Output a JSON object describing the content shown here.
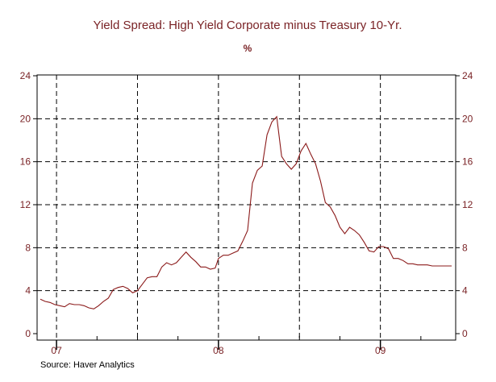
{
  "chart_data": {
    "type": "line",
    "title": "Yield Spread: High Yield Corporate minus Treasury 10-Yr.",
    "unit_label": "%",
    "source": "Source: Haver Analytics",
    "ylim": [
      0,
      24
    ],
    "y_ticks": [
      0,
      4,
      8,
      12,
      16,
      20,
      24
    ],
    "y_tick_labels_left": [
      "0",
      "4",
      "8",
      "12",
      "16",
      "20",
      "24"
    ],
    "y_tick_labels_right": [
      "0",
      "4",
      "8",
      "12",
      "16",
      "20",
      "24"
    ],
    "xlim": [
      2006.9,
      2009.45
    ],
    "x_year_boundaries": [
      2007,
      2008,
      2009
    ],
    "x_tick_labels": [
      {
        "label": "07",
        "x": 2007.5
      },
      {
        "label": "08",
        "x": 2008.5
      },
      {
        "label": "09",
        "x": 2009.5
      }
    ],
    "grid": true,
    "legend": "none",
    "line_color": "#8b1a1a",
    "series": [
      {
        "x": [
          2006.9,
          2006.93,
          2006.96,
          2006.99,
          2007.02,
          2007.05,
          2007.08,
          2007.11,
          2007.14,
          2007.17,
          2007.2,
          2007.23,
          2007.26,
          2007.29,
          2007.32,
          2007.35,
          2007.38,
          2007.41,
          2007.44,
          2007.47,
          2007.5,
          2007.53,
          2007.56,
          2007.59,
          2007.62,
          2007.65,
          2007.68,
          2007.71,
          2007.74,
          2007.77,
          2007.8,
          2007.83,
          2007.86,
          2007.89,
          2007.92,
          2007.95,
          2007.98,
          2008.0,
          2008.03,
          2008.06,
          2008.09,
          2008.12,
          2008.15,
          2008.18,
          2008.21,
          2008.24,
          2008.27,
          2008.3,
          2008.33,
          2008.36,
          2008.39,
          2008.42,
          2008.45,
          2008.48,
          2008.51,
          2008.54,
          2008.57,
          2008.6,
          2008.63,
          2008.66,
          2008.69,
          2008.72,
          2008.75,
          2008.78,
          2008.81,
          2008.84,
          2008.87,
          2008.9,
          2008.93,
          2008.96,
          2008.99,
          2009.02,
          2009.05,
          2009.08,
          2009.11,
          2009.14,
          2009.17,
          2009.2,
          2009.23,
          2009.26,
          2009.29,
          2009.32,
          2009.35,
          2009.38,
          2009.41,
          2009.44
        ],
        "values": [
          3.2,
          3.0,
          2.9,
          2.7,
          2.6,
          2.5,
          2.8,
          2.7,
          2.7,
          2.6,
          2.4,
          2.3,
          2.6,
          3.0,
          3.3,
          4.1,
          4.3,
          4.4,
          4.2,
          3.8,
          4.0,
          4.6,
          5.2,
          5.3,
          5.3,
          6.2,
          6.6,
          6.4,
          6.6,
          7.1,
          7.6,
          7.1,
          6.7,
          6.2,
          6.2,
          6.0,
          6.1,
          7.0,
          7.3,
          7.3,
          7.5,
          7.7,
          8.6,
          9.6,
          14.0,
          15.2,
          15.6,
          18.5,
          19.7,
          20.2,
          16.5,
          15.8,
          15.3,
          15.8,
          17.0,
          17.7,
          16.7,
          15.8,
          14.2,
          12.2,
          11.8,
          11.0,
          9.9,
          9.3,
          9.9,
          9.6,
          9.2,
          8.5,
          7.7,
          7.6,
          8.1,
          8.1,
          7.9,
          7.0,
          7.0,
          6.8,
          6.5,
          6.5,
          6.4,
          6.4,
          6.4,
          6.3,
          6.3,
          6.3,
          6.3,
          6.3
        ]
      }
    ]
  }
}
